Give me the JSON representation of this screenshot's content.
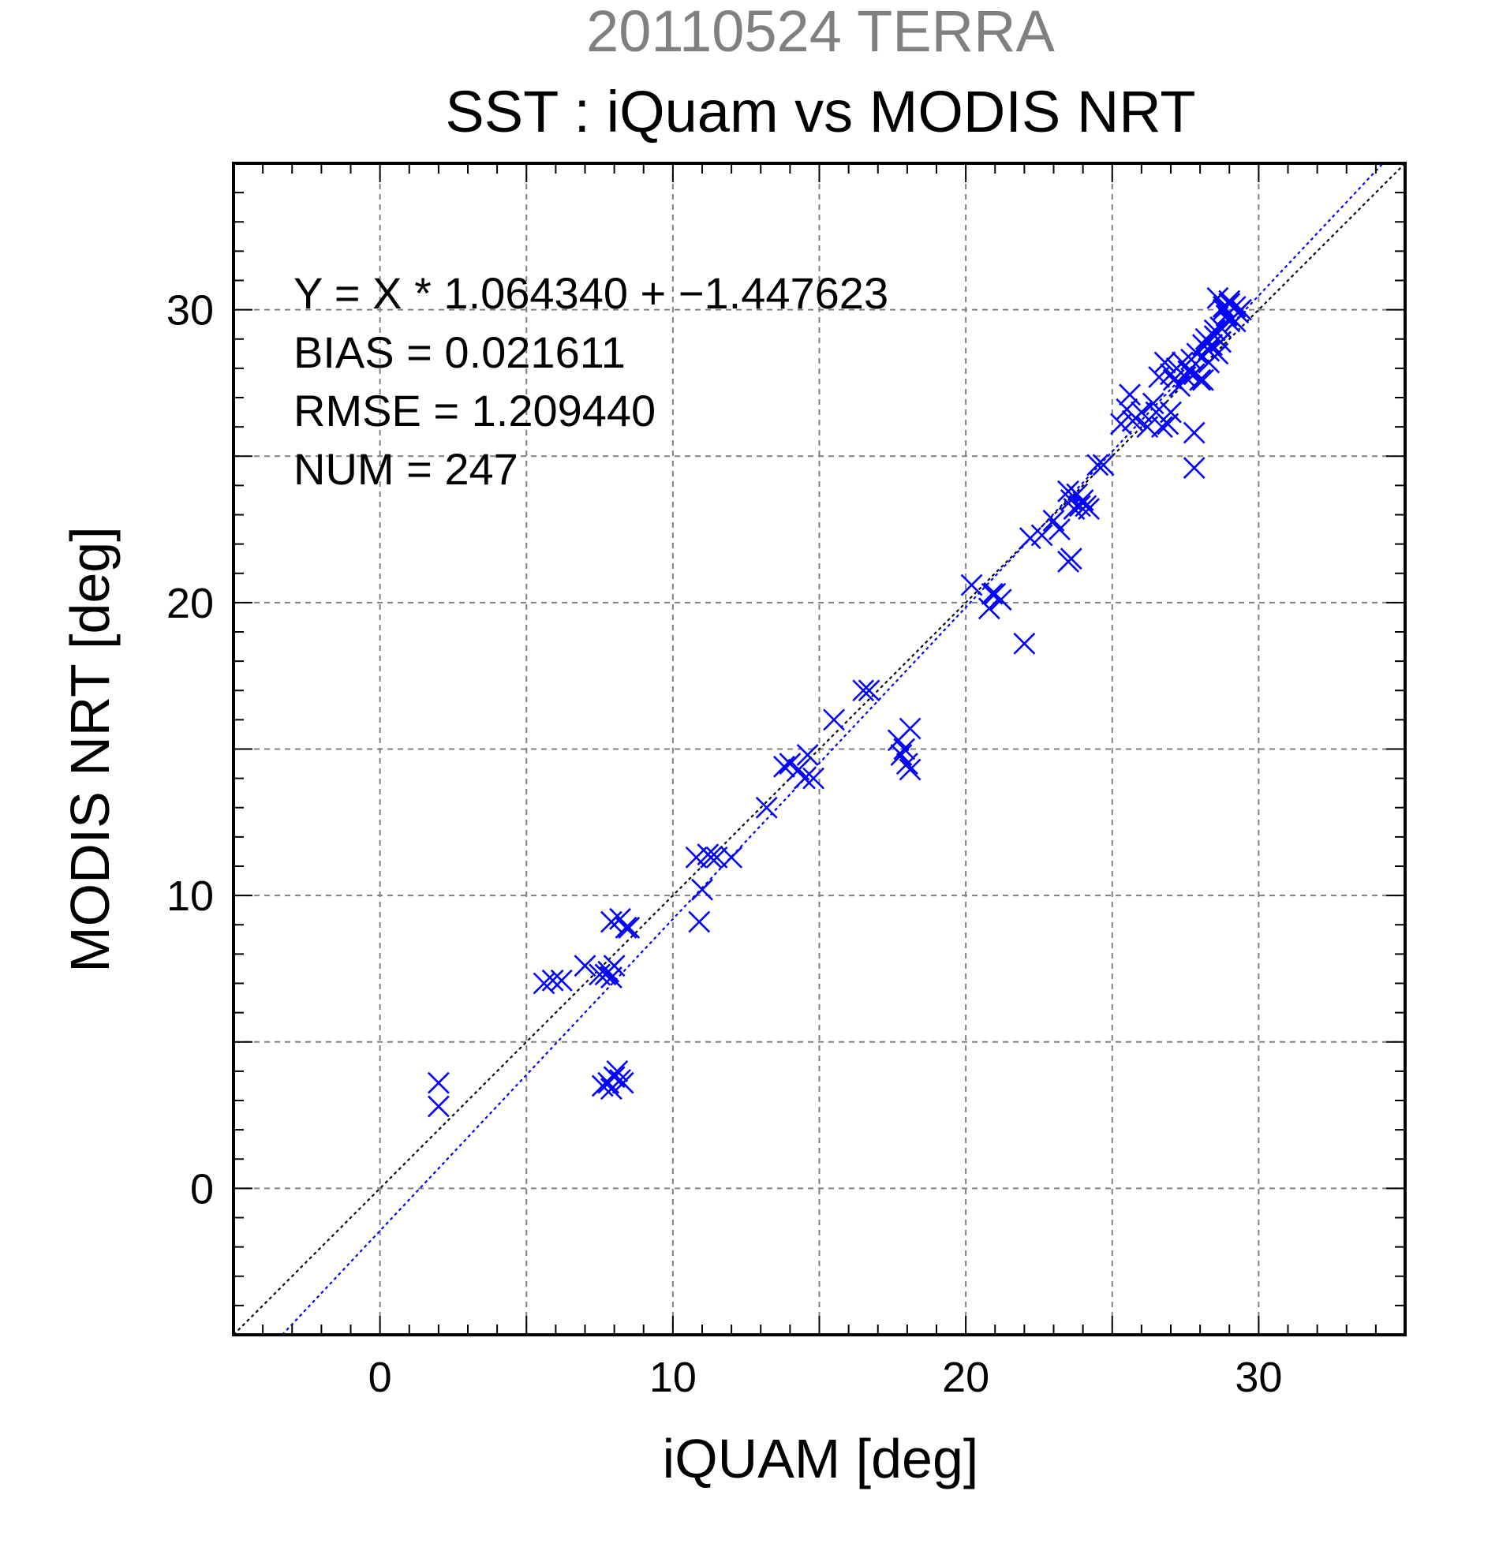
{
  "chart_data": {
    "type": "scatter",
    "title": "20110524 TERRA",
    "subtitle": "SST : iQuam vs MODIS NRT",
    "xlabel": "iQUAM [deg]",
    "ylabel": "MODIS NRT [deg]",
    "xlim": [
      -5,
      35
    ],
    "ylim": [
      -5,
      35
    ],
    "xticks": [
      "0",
      "10",
      "20",
      "30"
    ],
    "yticks": [
      "0",
      "10",
      "20",
      "30"
    ],
    "grid": true,
    "marker": "x",
    "colors": {
      "points": "#0000ff",
      "fit_line": "#0000ff",
      "identity_line": "#000000",
      "grid": "#808080"
    },
    "stats": [
      "Y = X * 1.064340 + −1.447623",
      "BIAS = 0.021611",
      "RMSE = 1.209440",
      "NUM = 247"
    ],
    "fit": {
      "slope": 1.06434,
      "intercept": -1.447623
    },
    "identity": {
      "slope": 1,
      "intercept": 0
    },
    "series": [
      {
        "x": [
          2.0,
          2.0,
          5.6,
          5.9,
          6.2,
          7.0,
          7.5,
          7.7,
          7.8,
          7.9,
          8.0,
          7.6,
          7.8,
          7.9,
          8.0,
          8.1,
          8.2,
          8.3,
          7.9,
          8.2,
          8.4,
          8.5,
          10.8,
          10.9,
          11.0,
          11.2,
          11.3,
          11.5,
          12.0,
          13.2,
          13.8,
          14.0,
          14.3,
          14.5,
          14.6,
          14.8,
          15.5,
          16.5,
          16.7,
          17.7,
          17.8,
          17.9,
          18.0,
          18.1,
          18.1,
          20.2,
          20.8,
          20.9,
          21.0,
          21.2,
          22.0,
          22.2,
          22.6,
          23.0,
          23.2,
          23.5,
          23.6,
          23.7,
          23.8,
          23.9,
          24.0,
          24.1,
          24.2,
          24.5,
          24.7,
          25.3,
          25.5,
          25.6,
          25.7,
          25.8,
          26.0,
          26.2,
          26.4,
          26.5,
          26.7,
          26.9,
          27.0,
          26.6,
          26.8,
          27.0,
          27.1,
          27.2,
          27.3,
          27.4,
          27.5,
          27.6,
          27.7,
          27.8,
          27.9,
          28.0,
          28.1,
          28.2,
          28.3,
          28.4,
          28.5,
          28.6,
          28.7,
          28.8,
          28.9,
          29.0,
          29.1,
          29.2,
          28.6,
          28.8,
          29.0,
          29.2,
          29.4,
          27.8,
          27.8,
          28.1,
          23.6,
          23.5,
          28.3,
          28.5,
          28.7,
          29.0,
          29.3
        ],
        "y": [
          2.8,
          3.6,
          7.0,
          7.1,
          7.1,
          7.6,
          7.3,
          7.3,
          7.4,
          7.2,
          7.6,
          3.5,
          3.6,
          3.4,
          3.8,
          4.0,
          3.7,
          3.6,
          9.1,
          9.2,
          8.9,
          8.9,
          11.3,
          9.1,
          10.2,
          11.4,
          11.3,
          11.3,
          11.3,
          13.0,
          14.4,
          14.5,
          14.3,
          14.0,
          14.8,
          14.0,
          16.0,
          17.0,
          17.0,
          15.3,
          14.8,
          15.0,
          14.5,
          15.7,
          14.3,
          20.6,
          19.8,
          20.3,
          20.3,
          20.1,
          18.6,
          22.2,
          22.3,
          22.8,
          22.5,
          23.8,
          23.5,
          23.2,
          23.7,
          23.3,
          23.5,
          23.3,
          23.2,
          24.7,
          24.7,
          26.1,
          26.6,
          27.1,
          26.2,
          26.3,
          26.5,
          26.0,
          26.8,
          26.5,
          26.0,
          26.1,
          26.5,
          27.7,
          28.2,
          27.8,
          27.6,
          28.0,
          27.4,
          28.2,
          27.7,
          27.9,
          28.3,
          27.8,
          28.5,
          27.6,
          28.8,
          29.0,
          28.2,
          28.8,
          29.3,
          28.5,
          29.4,
          30.1,
          29.8,
          30.3,
          29.7,
          30.1,
          30.4,
          30.0,
          30.2,
          29.6,
          30.0,
          25.8,
          24.6,
          27.6,
          21.5,
          21.4,
          28.6,
          29.1,
          28.9,
          29.6,
          29.9
        ]
      }
    ]
  }
}
